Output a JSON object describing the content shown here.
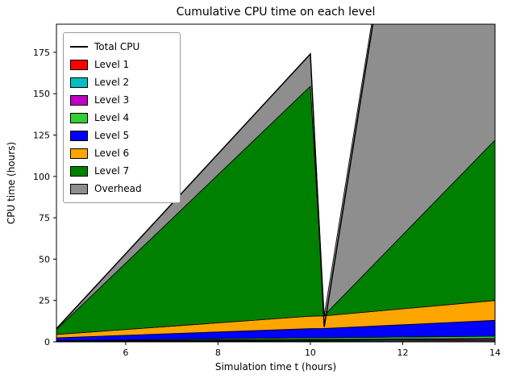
{
  "window": {
    "title": "Cumulative CPU time on each level"
  },
  "chart_data": {
    "type": "area",
    "title": "Cumulative CPU time on each level",
    "xlabel": "Simulation time t (hours)",
    "ylabel": "CPU time (hours)",
    "xlim": [
      4.5,
      14
    ],
    "ylim": [
      0,
      192
    ],
    "x_ticks": [
      6,
      8,
      10,
      12,
      14
    ],
    "y_ticks": [
      0,
      25,
      50,
      75,
      100,
      125,
      150,
      175
    ],
    "grid": false,
    "legend_position": "upper left",
    "x": [
      4.5,
      10.0,
      10.3,
      14.0
    ],
    "series": [
      {
        "name": "Level 1",
        "color": "#ff0000",
        "values": [
          0.15,
          0.5,
          0.5,
          0.7
        ]
      },
      {
        "name": "Level 2",
        "color": "#00bec4",
        "values": [
          0.15,
          0.5,
          0.5,
          0.7
        ]
      },
      {
        "name": "Level 3",
        "color": "#c000c0",
        "values": [
          0.15,
          0.5,
          0.5,
          0.7
        ]
      },
      {
        "name": "Level 4",
        "color": "#32cd32",
        "values": [
          0.2,
          1.0,
          1.0,
          1.3
        ]
      },
      {
        "name": "Level 5",
        "color": "#0000ff",
        "values": [
          1.8,
          5.5,
          5.6,
          9.6
        ]
      },
      {
        "name": "Level 6",
        "color": "#ffa500",
        "values": [
          2.0,
          7.5,
          7.6,
          12.0
        ]
      },
      {
        "name": "Level 7",
        "color": "#008000",
        "values": [
          3.0,
          139.0,
          0.3,
          97.0
        ]
      }
    ],
    "overhead": {
      "name": "Overhead",
      "color": "#8e8e8e"
    },
    "total_line": {
      "name": "Total CPU",
      "color": "#000000",
      "x": [
        4.5,
        10.0,
        10.3,
        14.0
      ],
      "y": [
        8,
        174,
        9,
        652
      ]
    },
    "legend": [
      "Total CPU",
      "Level 1",
      "Level 2",
      "Level 3",
      "Level 4",
      "Level 5",
      "Level 6",
      "Level 7",
      "Overhead"
    ]
  }
}
